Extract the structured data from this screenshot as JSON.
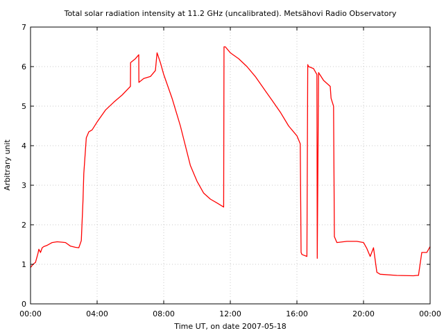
{
  "chart_data": {
    "type": "line",
    "title": "Total solar radiation intensity at 11.2 GHz (uncalibrated). Metsähovi Radio Observatory",
    "xlabel": "Time UT, on date 2007-05-18",
    "ylabel": "Arbitrary unit",
    "xlim": [
      0,
      24
    ],
    "ylim": [
      0,
      7
    ],
    "x_tick_values": [
      0,
      4,
      8,
      12,
      16,
      20,
      24
    ],
    "x_tick_labels": [
      "00:00",
      "04:00",
      "08:00",
      "12:00",
      "16:00",
      "20:00",
      "00:00"
    ],
    "y_tick_values": [
      0,
      1,
      2,
      3,
      4,
      5,
      6,
      7
    ],
    "y_tick_labels": [
      "0",
      "1",
      "2",
      "3",
      "4",
      "5",
      "6",
      "7"
    ],
    "grid": true,
    "series": [
      {
        "color": "#ff0000",
        "x": [
          0.0,
          0.15,
          0.3,
          0.45,
          0.5,
          0.6,
          0.7,
          0.8,
          1.0,
          1.3,
          1.6,
          1.9,
          2.1,
          2.4,
          2.7,
          2.9,
          3.05,
          3.15,
          3.2,
          3.35,
          3.5,
          3.7,
          4.0,
          4.5,
          5.0,
          5.5,
          6.0,
          6.01,
          6.3,
          6.5,
          6.51,
          6.8,
          7.2,
          7.5,
          7.6,
          7.8,
          8.0,
          8.5,
          9.0,
          9.3,
          9.6,
          10.0,
          10.4,
          10.8,
          11.2,
          11.6,
          11.62,
          11.7,
          12.0,
          12.5,
          13.0,
          13.5,
          14.0,
          14.5,
          15.0,
          15.5,
          16.0,
          16.2,
          16.25,
          16.3,
          16.6,
          16.65,
          16.7,
          17.0,
          17.2,
          17.22,
          17.3,
          17.6,
          18.0,
          18.05,
          18.2,
          18.25,
          18.4,
          19.0,
          19.6,
          20.0,
          20.2,
          20.4,
          20.6,
          20.8,
          21.0,
          22.0,
          23.0,
          23.2,
          23.3,
          23.5,
          23.8,
          24.0
        ],
        "y": [
          0.92,
          1.0,
          1.05,
          1.28,
          1.38,
          1.3,
          1.42,
          1.45,
          1.48,
          1.55,
          1.57,
          1.56,
          1.55,
          1.46,
          1.43,
          1.42,
          1.6,
          2.6,
          3.3,
          4.2,
          4.35,
          4.4,
          4.6,
          4.9,
          5.1,
          5.28,
          5.5,
          6.1,
          6.2,
          6.3,
          5.6,
          5.7,
          5.75,
          5.9,
          6.35,
          6.1,
          5.8,
          5.2,
          4.5,
          4.0,
          3.5,
          3.1,
          2.8,
          2.65,
          2.55,
          2.45,
          6.5,
          6.5,
          6.35,
          6.2,
          6.0,
          5.75,
          5.45,
          5.15,
          4.85,
          4.5,
          4.25,
          4.05,
          1.3,
          1.25,
          1.2,
          6.05,
          6.0,
          5.95,
          5.8,
          1.15,
          5.85,
          5.65,
          5.5,
          5.2,
          5.0,
          1.7,
          1.55,
          1.58,
          1.58,
          1.55,
          1.4,
          1.2,
          1.42,
          0.8,
          0.75,
          0.72,
          0.71,
          0.72,
          0.72,
          1.3,
          1.3,
          1.45
        ]
      }
    ]
  }
}
